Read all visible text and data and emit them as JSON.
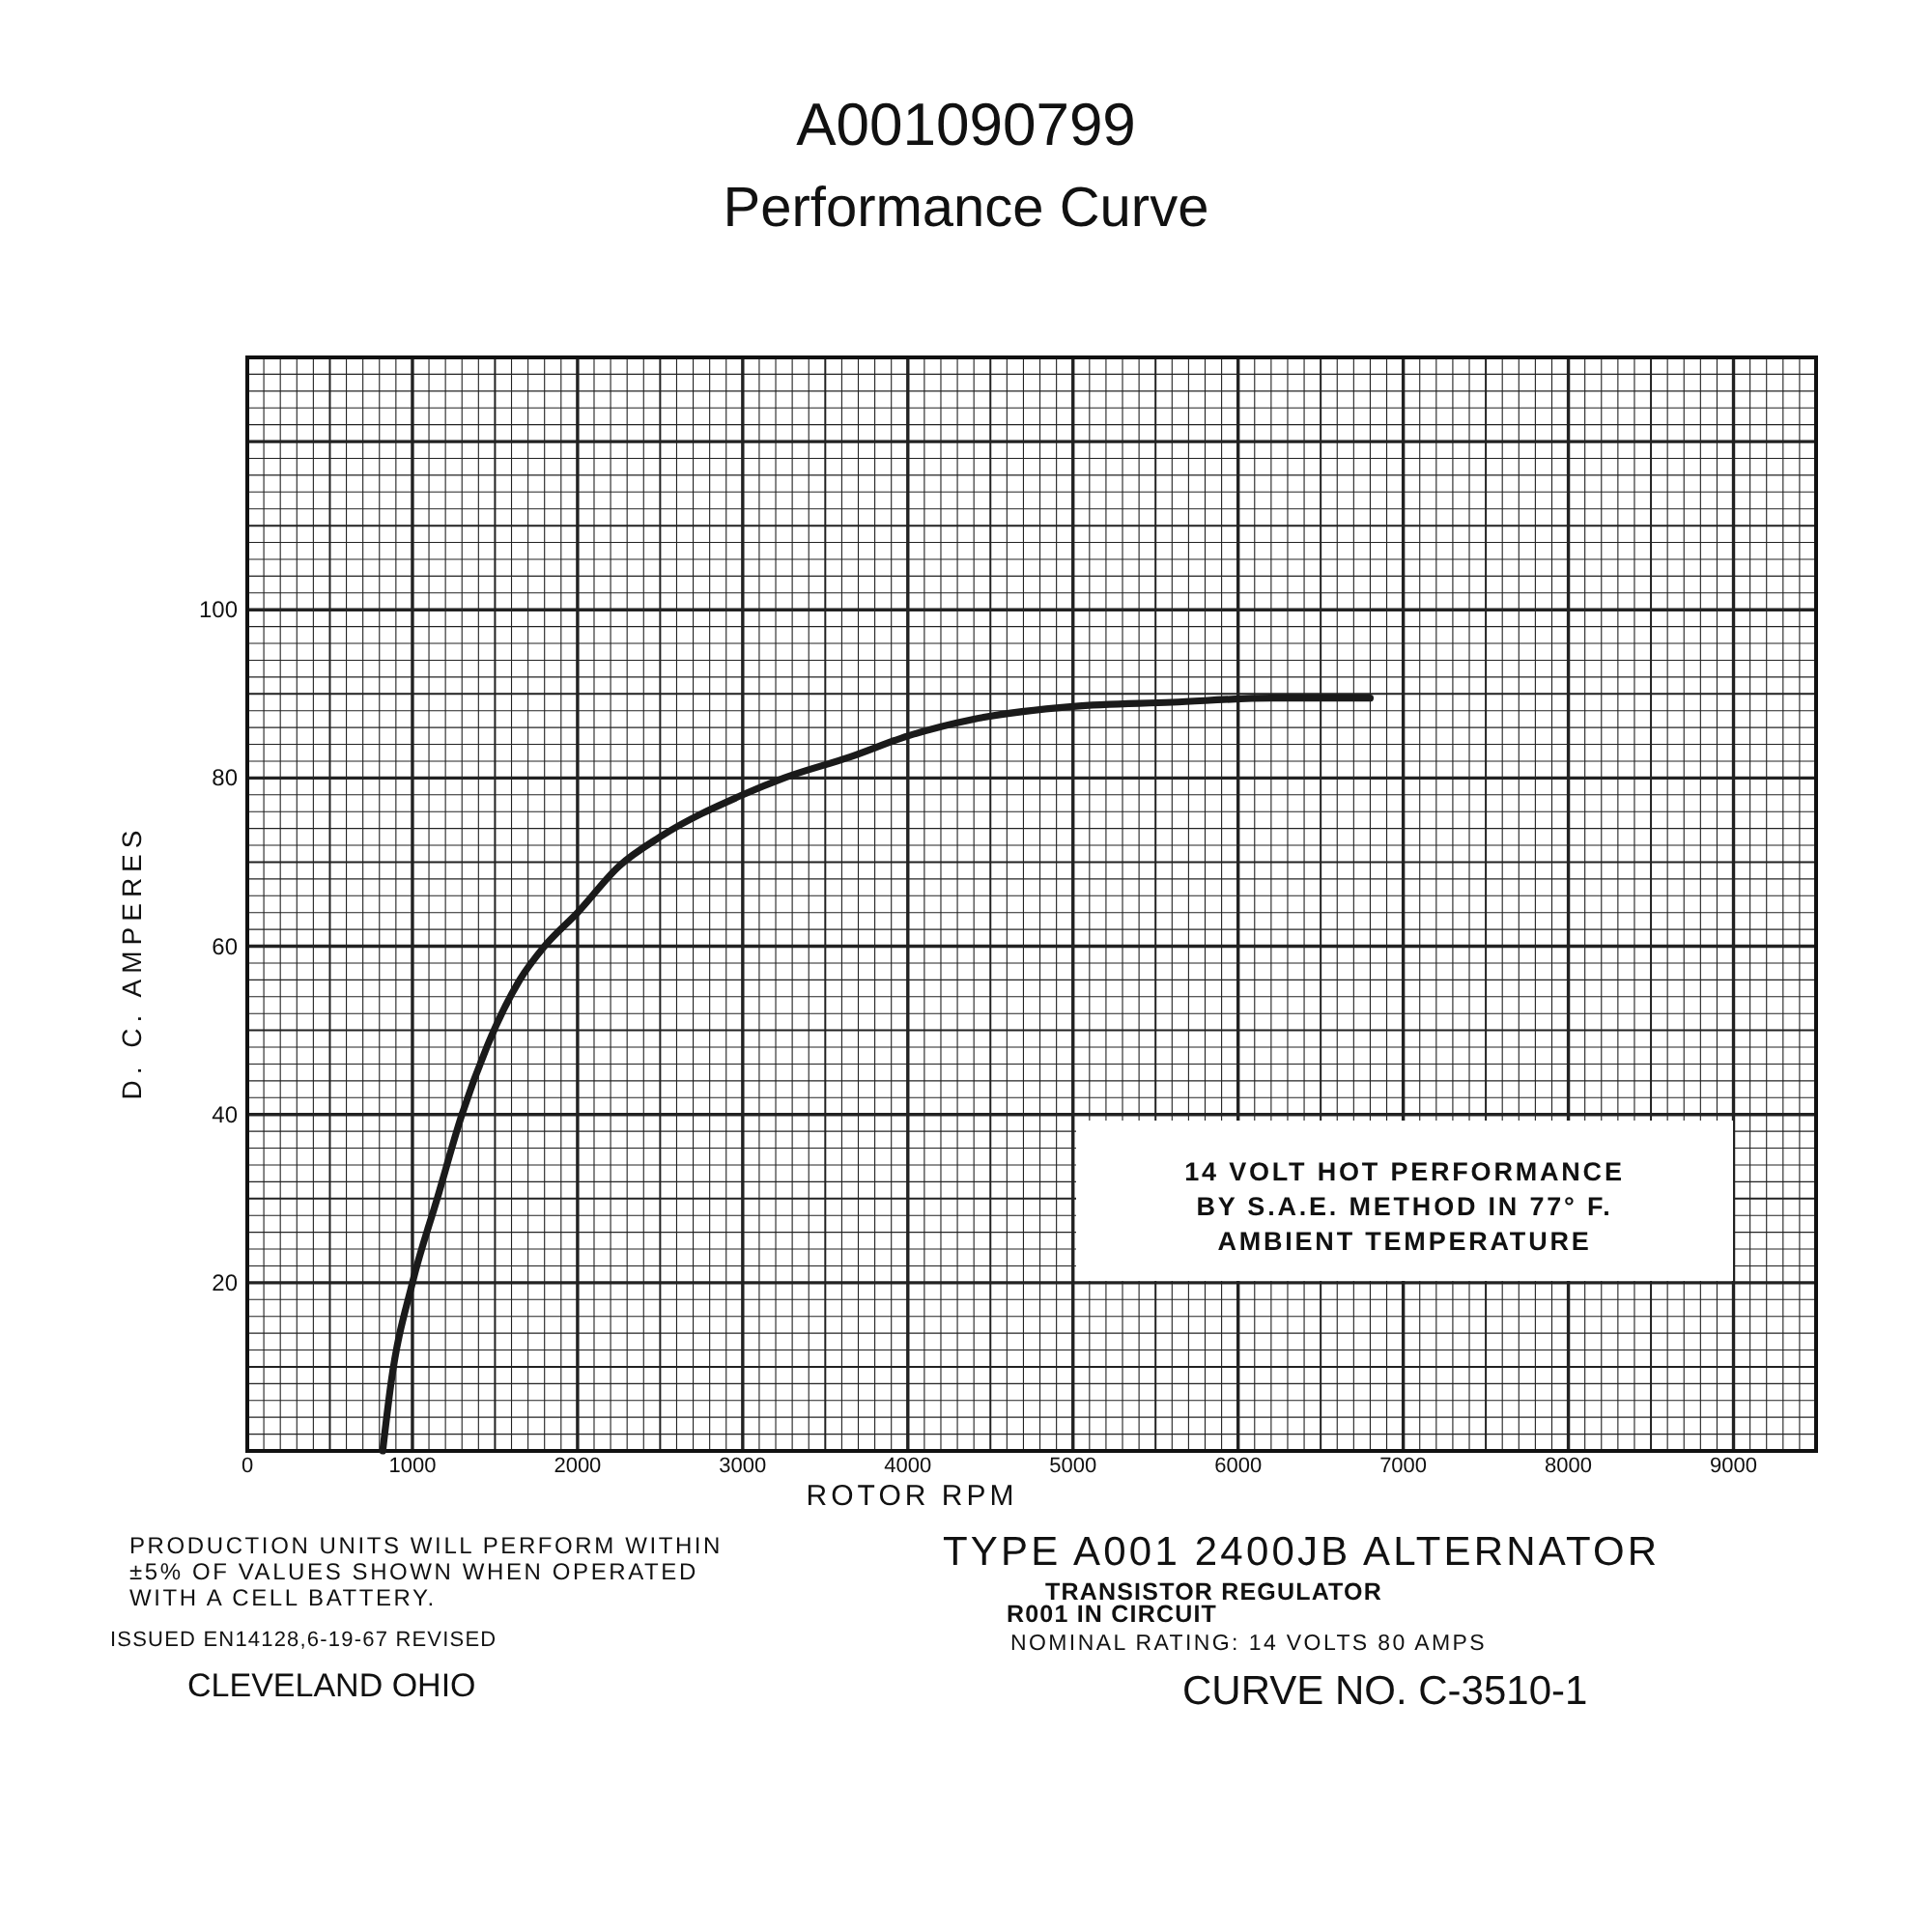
{
  "chart_data": {
    "type": "line",
    "title": "A001090799",
    "subtitle": "Performance Curve",
    "xlabel": "ROTOR RPM",
    "ylabel": "D. C. AMPERES",
    "x": [
      820,
      870,
      1000,
      1150,
      1300,
      1450,
      1650,
      1800,
      2000,
      2250,
      2500,
      3000,
      3250,
      3650,
      4000,
      4400,
      5000,
      5600,
      6200,
      6800
    ],
    "series": [
      {
        "color": "#1a1a1a",
        "values": [
          0,
          8,
          20,
          30,
          40,
          48,
          56,
          60,
          64,
          69.5,
          73,
          78,
          80,
          82.5,
          85,
          87,
          88.5,
          89,
          89.5,
          89.5
        ]
      }
    ],
    "xlim": [
      0,
      9500
    ],
    "xticks": [
      0,
      1000,
      2000,
      3000,
      4000,
      5000,
      6000,
      7000,
      8000,
      9000
    ],
    "ylim": [
      0,
      130
    ],
    "yticks": [
      20,
      40,
      60,
      80,
      100
    ],
    "grid": true,
    "line_style": "solid",
    "annotations": [
      "14 VOLT HOT PERFORMANCE\nBY S.A.E. METHOD IN 77° F.\nAMBIENT TEMPERATURE",
      "PRODUCTION UNITS WILL PERFORM WITHIN\n±5% OF VALUES SHOWN WHEN OPERATED\nWITH A CELL BATTERY.",
      "ISSUED EN14128,6-19-67 REVISED",
      "CLEVELAND OHIO",
      "TYPE A001 2400JB ALTERNATOR",
      "TRANSISTOR REGULATOR\nR001 IN CIRCUIT",
      "NOMINAL RATING: 14 VOLTS 80 AMPS",
      "CURVE NO. C-3510-1"
    ]
  }
}
